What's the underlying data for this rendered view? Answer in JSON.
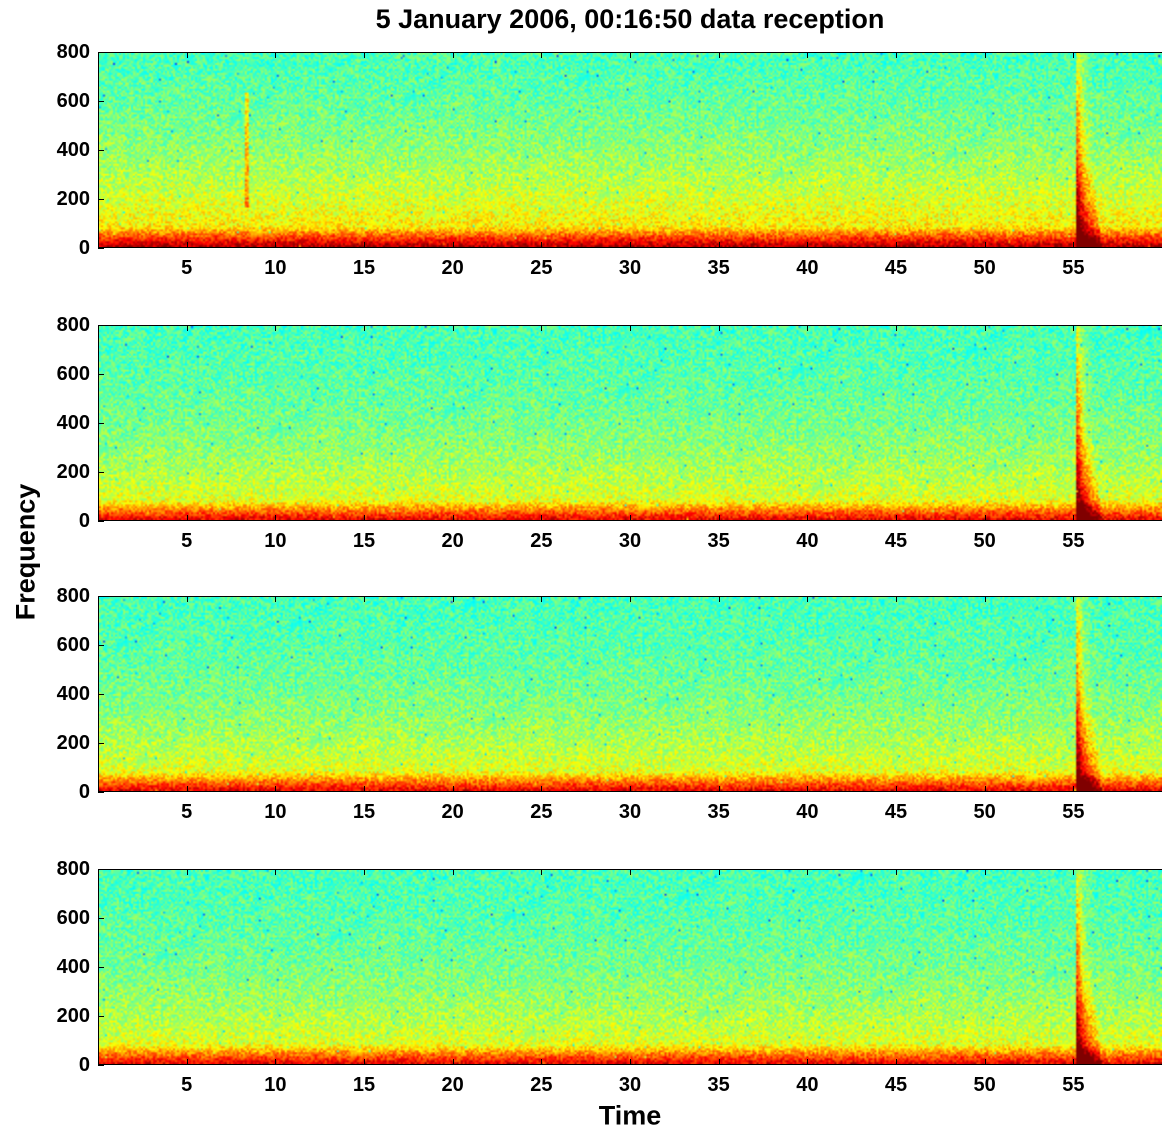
{
  "chart_data": {
    "type": "heatmap",
    "title": "5 January 2006, 00:16:50 data reception",
    "xlabel": "Time",
    "ylabel": "Frequency",
    "xlim": [
      0,
      60
    ],
    "ylim": [
      0,
      800
    ],
    "xticks": [
      5,
      10,
      15,
      20,
      25,
      30,
      35,
      40,
      45,
      50,
      55
    ],
    "yticks": [
      0,
      200,
      400,
      600,
      800
    ],
    "colormap": "jet",
    "panels": [
      {
        "events": [
          {
            "time": 55.3,
            "kind": "broadband burst"
          },
          {
            "time": 8.3,
            "kind": "faint vertical streak"
          }
        ]
      },
      {
        "events": [
          {
            "time": 55.3,
            "kind": "broadband burst"
          }
        ]
      },
      {
        "events": [
          {
            "time": 55.3,
            "kind": "broadband burst"
          }
        ]
      },
      {
        "events": [
          {
            "time": 55.3,
            "kind": "broadband burst"
          }
        ]
      }
    ]
  }
}
